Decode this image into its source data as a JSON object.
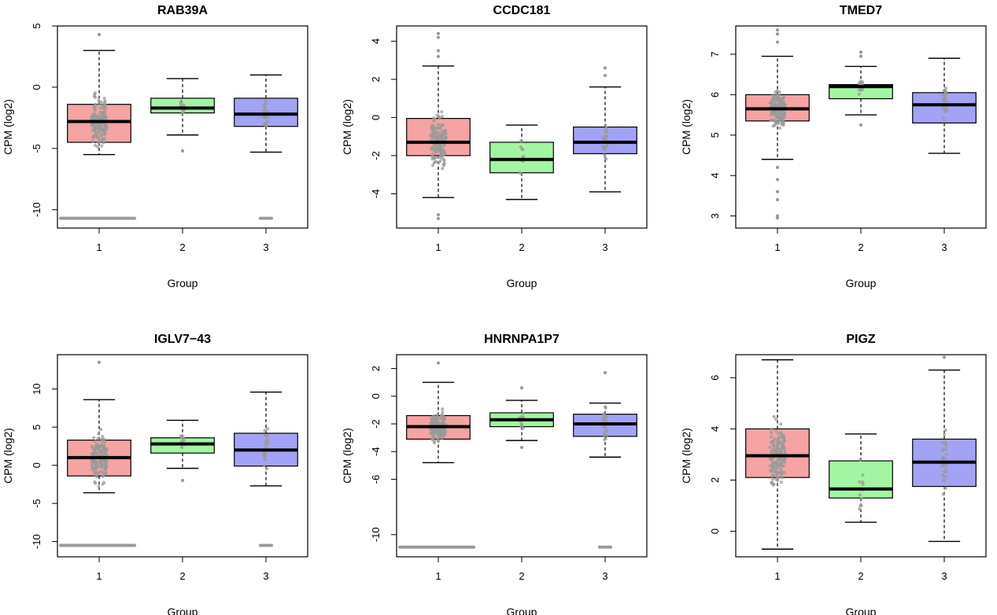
{
  "colors": {
    "group_fills": [
      "#f5a3a3",
      "#a3f5a3",
      "#a3a3f5"
    ],
    "points": "#9a9a9a",
    "median": "#000000",
    "frame": "#000000"
  },
  "chart_data": [
    {
      "type": "box",
      "title": "RAB39A",
      "xlabel": "Group",
      "ylabel": "CPM (log2)",
      "categories": [
        "1",
        "2",
        "3"
      ],
      "ylim": [
        -11.5,
        5
      ],
      "yticks": [
        5,
        0,
        -5,
        -10
      ],
      "boxes": [
        {
          "group": "1",
          "whisker_low": -5.5,
          "q1": -4.5,
          "median": -2.8,
          "q3": -1.4,
          "whisker_high": 3.0
        },
        {
          "group": "2",
          "whisker_low": -3.9,
          "q1": -2.1,
          "median": -1.7,
          "q3": -0.9,
          "whisker_high": 0.7
        },
        {
          "group": "3",
          "whisker_low": -5.3,
          "q1": -3.2,
          "median": -2.2,
          "q3": -0.9,
          "whisker_high": 1.0
        }
      ],
      "outliers": [
        {
          "group": "1",
          "values": [
            4.3
          ]
        },
        {
          "group": "2",
          "values": [
            -5.2
          ]
        },
        {
          "group": "3",
          "values": []
        }
      ],
      "floor_value": -10.7,
      "floor_groups": [
        "1",
        "3"
      ]
    },
    {
      "type": "box",
      "title": "CCDC181",
      "xlabel": "Group",
      "ylabel": "CPM (log2)",
      "categories": [
        "1",
        "2",
        "3"
      ],
      "ylim": [
        -5.8,
        4.8
      ],
      "yticks": [
        4,
        2,
        0,
        -2,
        -4
      ],
      "boxes": [
        {
          "group": "1",
          "whisker_low": -4.2,
          "q1": -2.0,
          "median": -1.3,
          "q3": -0.05,
          "whisker_high": 2.7
        },
        {
          "group": "2",
          "whisker_low": -4.3,
          "q1": -2.9,
          "median": -2.2,
          "q3": -1.3,
          "whisker_high": -0.4
        },
        {
          "group": "3",
          "whisker_low": -3.9,
          "q1": -1.9,
          "median": -1.3,
          "q3": -0.5,
          "whisker_high": 1.6
        }
      ],
      "outliers": [
        {
          "group": "1",
          "values": [
            4.4,
            4.2,
            3.5,
            3.2,
            -5.3,
            -5.1
          ]
        },
        {
          "group": "2",
          "values": []
        },
        {
          "group": "3",
          "values": [
            2.6,
            2.2
          ]
        }
      ]
    },
    {
      "type": "box",
      "title": "TMED7",
      "xlabel": "Group",
      "ylabel": "CPM (log2)",
      "categories": [
        "1",
        "2",
        "3"
      ],
      "ylim": [
        2.7,
        7.7
      ],
      "yticks": [
        3,
        4,
        5,
        6,
        7
      ],
      "boxes": [
        {
          "group": "1",
          "whisker_low": 4.4,
          "q1": 5.35,
          "median": 5.65,
          "q3": 6.0,
          "whisker_high": 6.95
        },
        {
          "group": "2",
          "whisker_low": 5.5,
          "q1": 5.9,
          "median": 6.2,
          "q3": 6.25,
          "whisker_high": 6.7
        },
        {
          "group": "3",
          "whisker_low": 4.55,
          "q1": 5.3,
          "median": 5.75,
          "q3": 6.05,
          "whisker_high": 6.9
        }
      ],
      "outliers": [
        {
          "group": "1",
          "values": [
            7.6,
            7.5,
            7.3,
            4.2,
            3.9,
            3.6,
            3.4,
            3.0,
            2.95
          ]
        },
        {
          "group": "2",
          "values": [
            7.05,
            6.95,
            5.25
          ]
        },
        {
          "group": "3",
          "values": []
        }
      ]
    },
    {
      "type": "box",
      "title": "IGLV7−43",
      "xlabel": "Group",
      "ylabel": "CPM (log2)",
      "categories": [
        "1",
        "2",
        "3"
      ],
      "ylim": [
        -12,
        14.5
      ],
      "yticks": [
        10,
        5,
        0,
        -5,
        -10
      ],
      "boxes": [
        {
          "group": "1",
          "whisker_low": -3.6,
          "q1": -1.4,
          "median": 1.0,
          "q3": 3.3,
          "whisker_high": 8.6
        },
        {
          "group": "2",
          "whisker_low": -0.4,
          "q1": 1.6,
          "median": 2.8,
          "q3": 3.6,
          "whisker_high": 5.9
        },
        {
          "group": "3",
          "whisker_low": -2.7,
          "q1": -0.1,
          "median": 2.0,
          "q3": 4.2,
          "whisker_high": 9.6
        }
      ],
      "outliers": [
        {
          "group": "1",
          "values": [
            13.5
          ]
        },
        {
          "group": "2",
          "values": [
            -2.0
          ]
        },
        {
          "group": "3",
          "values": []
        }
      ],
      "floor_value": -10.5,
      "floor_groups": [
        "1",
        "3"
      ]
    },
    {
      "type": "box",
      "title": "HNRNPA1P7",
      "xlabel": "Group",
      "ylabel": "CPM (log2)",
      "categories": [
        "1",
        "2",
        "3"
      ],
      "ylim": [
        -11.6,
        3.0
      ],
      "yticks": [
        2,
        0,
        -2,
        -4,
        -6,
        -10
      ],
      "boxes": [
        {
          "group": "1",
          "whisker_low": -4.8,
          "q1": -3.1,
          "median": -2.2,
          "q3": -1.4,
          "whisker_high": 1.0
        },
        {
          "group": "2",
          "whisker_low": -3.2,
          "q1": -2.2,
          "median": -1.7,
          "q3": -1.2,
          "whisker_high": -0.3
        },
        {
          "group": "3",
          "whisker_low": -4.4,
          "q1": -2.9,
          "median": -2.0,
          "q3": -1.3,
          "whisker_high": -0.5
        }
      ],
      "outliers": [
        {
          "group": "1",
          "values": [
            2.4
          ]
        },
        {
          "group": "2",
          "values": [
            0.6,
            -3.7
          ]
        },
        {
          "group": "3",
          "values": [
            1.7
          ]
        }
      ],
      "floor_value": -10.9,
      "floor_groups": [
        "1",
        "3"
      ]
    },
    {
      "type": "box",
      "title": "PIGZ",
      "xlabel": "Group",
      "ylabel": "CPM (log2)",
      "categories": [
        "1",
        "2",
        "3"
      ],
      "ylim": [
        -1.0,
        6.9
      ],
      "yticks": [
        0,
        2,
        4,
        6
      ],
      "boxes": [
        {
          "group": "1",
          "whisker_low": -0.7,
          "q1": 2.1,
          "median": 2.95,
          "q3": 4.0,
          "whisker_high": 6.7
        },
        {
          "group": "2",
          "whisker_low": 0.35,
          "q1": 1.3,
          "median": 1.65,
          "q3": 2.75,
          "whisker_high": 3.8
        },
        {
          "group": "3",
          "whisker_low": -0.4,
          "q1": 1.75,
          "median": 2.7,
          "q3": 3.6,
          "whisker_high": 6.3
        }
      ],
      "outliers": [
        {
          "group": "1",
          "values": []
        },
        {
          "group": "2",
          "values": []
        },
        {
          "group": "3",
          "values": [
            6.8
          ]
        }
      ]
    }
  ]
}
